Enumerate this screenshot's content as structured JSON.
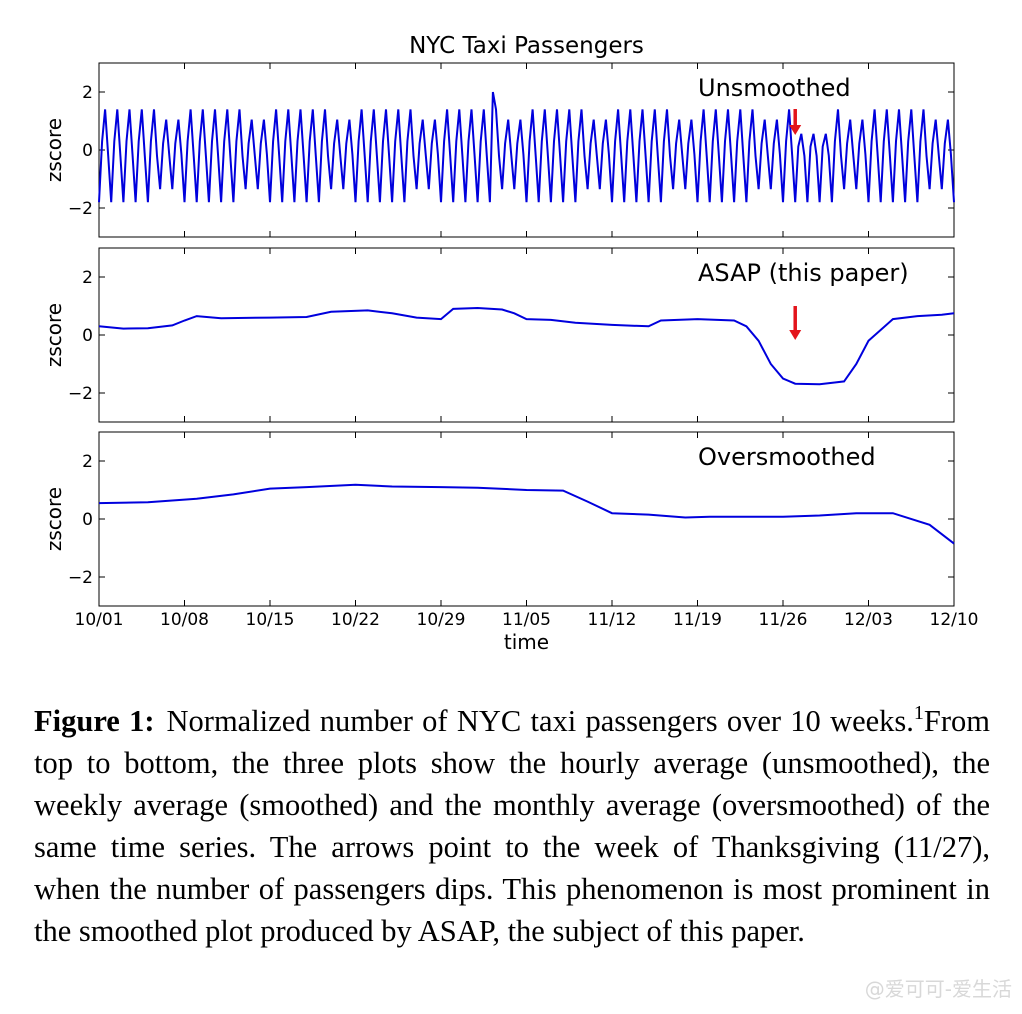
{
  "chart_data": {
    "type": "line",
    "title": "NYC Taxi Passengers",
    "xlabel": "time",
    "x_ticks": [
      "10/01",
      "10/08",
      "10/15",
      "10/22",
      "10/29",
      "11/05",
      "11/12",
      "11/19",
      "11/26",
      "12/03",
      "12/10"
    ],
    "x_range": [
      "10/01",
      "12/10"
    ],
    "line_color": "#0000dd",
    "arrow_color": "#e3141b",
    "panels": [
      {
        "label": "Unsmoothed",
        "ylabel": "zscore",
        "ylim": [
          -3,
          3
        ],
        "y_ticks": [
          2,
          0,
          -2
        ],
        "arrow_at": "11/27",
        "series_description_values": {
          "day_peak": 1.3,
          "day_trough": -1.9,
          "samples_per_day": 4,
          "daily_pattern": [
            -1.8,
            0.3,
            1.4,
            -0.2
          ],
          "max_value": 2.0,
          "max_date": "11/02"
        }
      },
      {
        "label": "ASAP (this paper)",
        "ylabel": "zscore",
        "ylim": [
          -3,
          3
        ],
        "y_ticks": [
          2,
          0,
          -2
        ],
        "arrow_at": "11/27",
        "points": [
          [
            "10/01",
            0.3
          ],
          [
            "10/03",
            0.22
          ],
          [
            "10/05",
            0.23
          ],
          [
            "10/07",
            0.33
          ],
          [
            "10/08",
            0.5
          ],
          [
            "10/09",
            0.65
          ],
          [
            "10/11",
            0.58
          ],
          [
            "10/15",
            0.6
          ],
          [
            "10/18",
            0.62
          ],
          [
            "10/20",
            0.8
          ],
          [
            "10/23",
            0.85
          ],
          [
            "10/25",
            0.75
          ],
          [
            "10/27",
            0.6
          ],
          [
            "10/29",
            0.55
          ],
          [
            "10/30",
            0.9
          ],
          [
            "11/01",
            0.93
          ],
          [
            "11/03",
            0.88
          ],
          [
            "11/04",
            0.75
          ],
          [
            "11/05",
            0.55
          ],
          [
            "11/07",
            0.52
          ],
          [
            "11/09",
            0.42
          ],
          [
            "11/12",
            0.35
          ],
          [
            "11/15",
            0.3
          ],
          [
            "11/16",
            0.5
          ],
          [
            "11/19",
            0.55
          ],
          [
            "11/22",
            0.5
          ],
          [
            "11/23",
            0.3
          ],
          [
            "11/24",
            -0.2
          ],
          [
            "11/25",
            -1.0
          ],
          [
            "11/26",
            -1.5
          ],
          [
            "11/27",
            -1.68
          ],
          [
            "11/29",
            -1.7
          ],
          [
            "12/01",
            -1.6
          ],
          [
            "12/02",
            -1.0
          ],
          [
            "12/03",
            -0.2
          ],
          [
            "12/05",
            0.55
          ],
          [
            "12/07",
            0.65
          ],
          [
            "12/09",
            0.7
          ],
          [
            "12/10",
            0.75
          ]
        ]
      },
      {
        "label": "Oversmoothed",
        "ylabel": "zscore",
        "ylim": [
          -3,
          3
        ],
        "y_ticks": [
          2,
          0,
          -2
        ],
        "points": [
          [
            "10/01",
            0.55
          ],
          [
            "10/05",
            0.58
          ],
          [
            "10/09",
            0.7
          ],
          [
            "10/12",
            0.85
          ],
          [
            "10/15",
            1.05
          ],
          [
            "10/18",
            1.1
          ],
          [
            "10/22",
            1.18
          ],
          [
            "10/25",
            1.12
          ],
          [
            "10/29",
            1.1
          ],
          [
            "11/01",
            1.08
          ],
          [
            "11/05",
            1.0
          ],
          [
            "11/08",
            0.98
          ],
          [
            "11/10",
            0.6
          ],
          [
            "11/12",
            0.2
          ],
          [
            "11/15",
            0.15
          ],
          [
            "11/18",
            0.05
          ],
          [
            "11/20",
            0.08
          ],
          [
            "11/26",
            0.08
          ],
          [
            "11/29",
            0.12
          ],
          [
            "12/02",
            0.2
          ],
          [
            "12/05",
            0.2
          ],
          [
            "12/08",
            -0.2
          ],
          [
            "12/10",
            -0.85
          ]
        ]
      }
    ]
  },
  "caption": {
    "label": "Figure 1:",
    "text_before_note": "Normalized number of NYC taxi passengers over 10 weeks.",
    "note_marker": "1",
    "text_after_note": "From top to bottom, the three plots show the hourly average (unsmoothed), the weekly average (smoothed) and the monthly average (oversmoothed) of the same time series. The arrows point to the week of Thanksgiving (11/27), when the number of passengers dips.  This phenomenon is most prominent in the smoothed plot produced by ASAP, the subject of this paper."
  },
  "watermark": "@爱可可-爱生活"
}
